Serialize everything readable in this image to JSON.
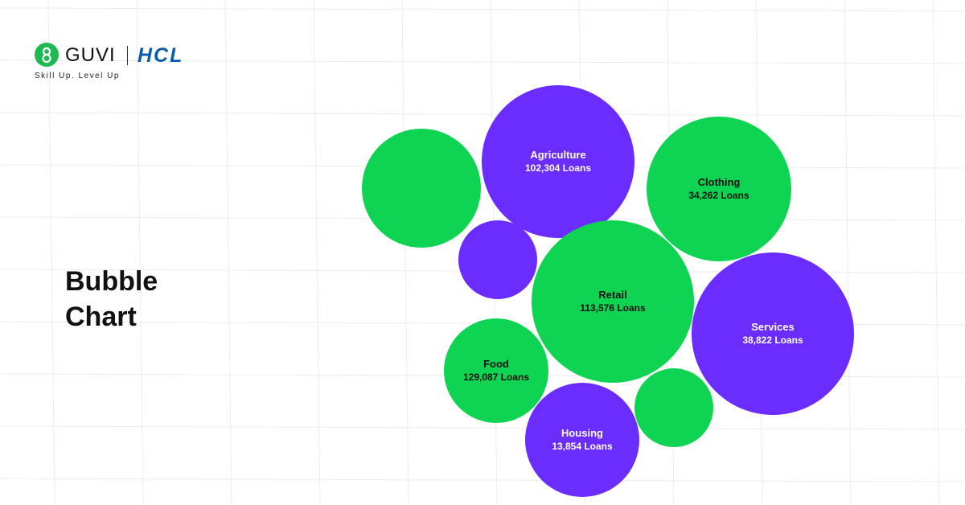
{
  "brand": {
    "guvi_name": "GUVI",
    "hcl_name": "HCL",
    "tagline": "Skill Up. Level Up"
  },
  "page_title": {
    "line1": "Bubble",
    "line2": "Chart"
  },
  "colors": {
    "green": "#0fd452",
    "purple": "#6a2cff",
    "label_dark": "#111111",
    "label_light": "#ffffff"
  },
  "chart_data": {
    "type": "bubble",
    "series": [
      {
        "category": "Agriculture",
        "value": 102304,
        "value_label": "102,304 Loans",
        "color": "purple"
      },
      {
        "category": "Clothing",
        "value": 34262,
        "value_label": "34,262 Loans",
        "color": "green"
      },
      {
        "category": "Retail",
        "value": 113576,
        "value_label": "113,576 Loans",
        "color": "green"
      },
      {
        "category": "Services",
        "value": 38822,
        "value_label": "38,822 Loans",
        "color": "purple"
      },
      {
        "category": "Food",
        "value": 129087,
        "value_label": "129,087 Loans",
        "color": "green"
      },
      {
        "category": "Housing",
        "value": 13854,
        "value_label": "13,854 Loans",
        "color": "purple"
      },
      {
        "category": "",
        "value": null,
        "value_label": "",
        "color": "green"
      },
      {
        "category": "",
        "value": null,
        "value_label": "",
        "color": "purple"
      },
      {
        "category": "",
        "value": null,
        "value_label": "",
        "color": "green"
      }
    ]
  }
}
